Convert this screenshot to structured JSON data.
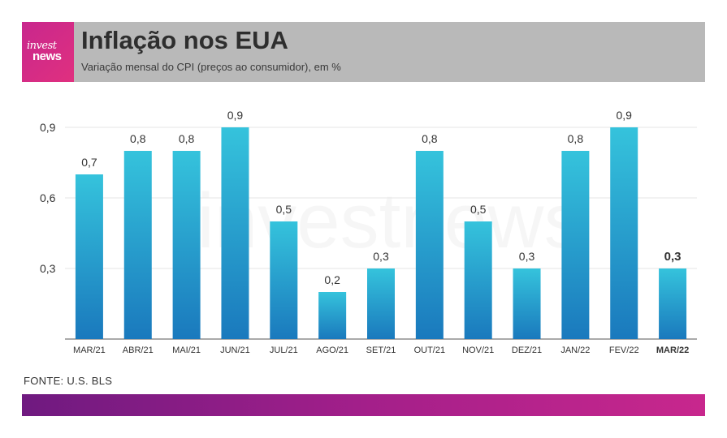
{
  "header": {
    "logo_top": "invest",
    "logo_bottom": "news",
    "title": "Inflação nos EUA",
    "subtitle": "Variação mensal do CPI (preços ao consumidor), em %"
  },
  "watermark": "investnews",
  "source": "FONTE: U.S. BLS",
  "colors": {
    "header_bg": "#b9b9b9",
    "logo_bg": "#c8278d",
    "bar_top": "#35c3dc",
    "bar_bottom": "#1a79bd",
    "footer_start": "#6f1a80",
    "footer_end": "#c8278d"
  },
  "chart_data": {
    "type": "bar",
    "categories": [
      "MAR/21",
      "ABR/21",
      "MAI/21",
      "JUN/21",
      "JUL/21",
      "AGO/21",
      "SET/21",
      "OUT/21",
      "NOV/21",
      "DEZ/21",
      "JAN/22",
      "FEV/22",
      "MAR/22"
    ],
    "values": [
      0.7,
      0.8,
      0.8,
      0.9,
      0.5,
      0.2,
      0.3,
      0.8,
      0.5,
      0.3,
      0.8,
      0.9,
      0.3
    ],
    "data_labels": [
      "0,7",
      "0,8",
      "0,8",
      "0,9",
      "0,5",
      "0,2",
      "0,3",
      "0,8",
      "0,5",
      "0,3",
      "0,8",
      "0,9",
      "0,3"
    ],
    "highlight_index": 12,
    "yticks": [
      0.3,
      0.6,
      0.9
    ],
    "ytick_labels": [
      "0,3",
      "0,6",
      "0,9"
    ],
    "ylim": [
      0,
      1.0
    ],
    "grid": true,
    "xlabel": "",
    "ylabel": ""
  }
}
